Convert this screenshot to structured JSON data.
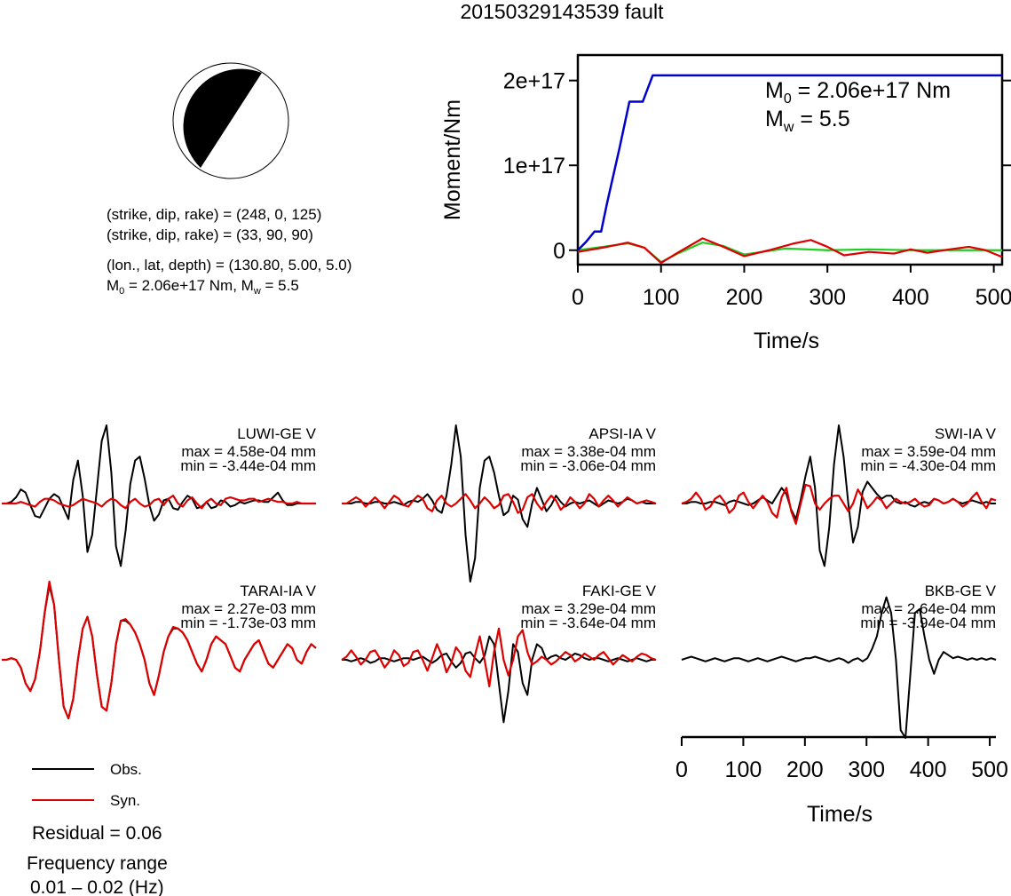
{
  "title": "20150329143539 fault",
  "mechanism": {
    "plane1": "(strike, dip, rake) = (248, 0, 125)",
    "plane2": "(strike, dip, rake) = (33, 90, 90)",
    "location": "(lon., lat, depth) = (130.80, 5.00, 5.0)",
    "m0_prefix": "M",
    "m0_sub": "0",
    "m0_value": " = 2.06e+17 Nm, M",
    "mw_sub": "w",
    "mw_value": " = 5.5"
  },
  "moment_plot": {
    "ylabel": "Moment/Nm",
    "xlabel": "Time/s",
    "m0_prefix": "M",
    "m0_sub": "0",
    "m0_value": " = 2.06e+17 Nm",
    "mw_prefix": "M",
    "mw_sub": "w",
    "mw_value": " = 5.5",
    "xticks": [
      "0",
      "100",
      "200",
      "300",
      "400",
      "500"
    ],
    "yticks": [
      "0",
      "1e+17",
      "2e+17"
    ]
  },
  "chart_data": [
    {
      "type": "line",
      "panel": "moment-function",
      "xlabel": "Time/s",
      "ylabel": "Moment/Nm",
      "xlim": [
        0,
        510
      ],
      "ylim": [
        -1.7e+16,
        2.3e+17
      ],
      "series": [
        {
          "color": "#0000cc",
          "x": [
            0,
            10,
            20,
            28,
            35,
            50,
            62,
            70,
            78,
            90,
            100,
            200,
            300,
            400,
            510
          ],
          "y": [
            0,
            1e+16,
            2.2e+16,
            2.2e+16,
            5.5e+16,
            1.2e+17,
            1.75e+17,
            1.75e+17,
            1.75e+17,
            2.06e+17,
            2.06e+17,
            2.06e+17,
            2.06e+17,
            2.06e+17,
            2.06e+17
          ]
        },
        {
          "color": "#dd0000",
          "x": [
            0,
            30,
            60,
            80,
            100,
            120,
            150,
            175,
            200,
            230,
            260,
            280,
            300,
            320,
            350,
            380,
            400,
            420,
            440,
            470,
            490,
            510
          ],
          "y": [
            -2000000000000000.0,
            3000000000000000.0,
            9000000000000000.0,
            3000000000000000.0,
            -1.5e+16,
            -3000000000000000.0,
            1.4e+16,
            4000000000000000.0,
            -7000000000000000.0,
            0.0,
            8000000000000000.0,
            1.2e+16,
            4000000000000000.0,
            -6000000000000000.0,
            -2000000000000000.0,
            -4000000000000000.0,
            1000000000000000.0,
            -3000000000000000.0,
            0.0,
            4000000000000000.0,
            0.0,
            -8000000000000000.0
          ]
        },
        {
          "color": "#22cc22",
          "x": [
            0,
            30,
            60,
            80,
            100,
            120,
            150,
            175,
            200,
            250,
            300,
            350,
            400,
            450,
            510
          ],
          "y": [
            0,
            4000000000000000.0,
            8000000000000000.0,
            3000000000000000.0,
            -1.4e+16,
            -4000000000000000.0,
            9000000000000000.0,
            5000000000000000.0,
            -5000000000000000.0,
            2000000000000000.0,
            0.0,
            1000000000000000.0,
            0.0,
            0.0,
            0.0
          ]
        }
      ]
    },
    {
      "type": "line",
      "panel": "waveforms",
      "xlabel": "Time/s",
      "xlim": [
        0,
        510
      ],
      "stations": [
        {
          "name": "LUWI-GE V",
          "max": "max = 4.58e-04 mm",
          "min": "min = -3.44e-04 mm",
          "obs": [
            0,
            0,
            0.02,
            0.08,
            0.18,
            0.14,
            -0.02,
            -0.16,
            -0.18,
            -0.06,
            0.06,
            0.12,
            0.08,
            -0.06,
            -0.2,
            0.3,
            0.55,
            0.1,
            -0.62,
            -0.4,
            0.2,
            0.8,
            1.0,
            0.4,
            -0.55,
            -0.8,
            -0.35,
            0.25,
            0.55,
            0.6,
            0.32,
            -0.02,
            -0.22,
            -0.14,
            0.04,
            0.06,
            -0.06,
            -0.08,
            0.02,
            0.1,
            0.06,
            -0.06,
            -0.04,
            0.02,
            -0.06,
            -0.04,
            0.04,
            0.02,
            -0.04,
            -0.02,
            0.02,
            0,
            0.02,
            0.04,
            0.04,
            0.02,
            0.02,
            0.08,
            0.14,
            0.04,
            -0.02,
            -0.02,
            0,
            0,
            0,
            0,
            0
          ],
          "syn": [
            0,
            0,
            0,
            0,
            0.02,
            0,
            -0.02,
            -0.04,
            0.02,
            0.06,
            0.06,
            0.04,
            0.0,
            -0.02,
            -0.04,
            -0.02,
            0.02,
            0.06,
            0.04,
            0.02,
            0.0,
            -0.04,
            0.02,
            0.06,
            0.04,
            -0.02,
            -0.06,
            0.02,
            0.06,
            0.0,
            -0.04,
            -0.02,
            0.04,
            0.06,
            -0.02,
            0.06,
            0.1,
            0.0,
            -0.04,
            0.04,
            0.08,
            0.0,
            -0.06,
            0.02,
            0.06,
            0.0,
            -0.02,
            0.06,
            0.08,
            0.06,
            0.04,
            0.04,
            0.06,
            0.06,
            0.02,
            0.04,
            0.06,
            0.04,
            0.02,
            0.02,
            0.0,
            0.0,
            0.02,
            0.0,
            0.0,
            0.0,
            0.0
          ]
        },
        {
          "name": "APSI-IA V",
          "max": "max = 3.38e-04 mm",
          "min": "min = -3.06e-04 mm",
          "obs": [
            0,
            0,
            0,
            0.02,
            0.02,
            0,
            0,
            0.02,
            0.02,
            0,
            0,
            0.02,
            0,
            -0.02,
            0.02,
            0.04,
            0.02,
            0.06,
            0.12,
            0.04,
            -0.08,
            -0.12,
            0.1,
            0.5,
            1.0,
            0.6,
            -0.4,
            -1.0,
            -0.7,
            0.2,
            0.55,
            0.6,
            0.4,
            0.1,
            -0.15,
            -0.1,
            0.1,
            0.05,
            -0.2,
            -0.3,
            0.0,
            0.2,
            0.05,
            -0.1,
            -0.02,
            0.1,
            0.02,
            -0.04,
            0.0,
            0.02,
            0.0,
            0.02,
            0.04,
            0.0,
            -0.04,
            0.0,
            0.04,
            0.02,
            0.0,
            0.02,
            0.06,
            0.04,
            0.0,
            0.02,
            0,
            0,
            0
          ],
          "syn": [
            0,
            0,
            0.04,
            0.08,
            0.04,
            -0.04,
            0.02,
            0.08,
            0.02,
            -0.06,
            0.02,
            0.1,
            0.06,
            -0.02,
            -0.04,
            0.04,
            0.1,
            0.06,
            -0.06,
            -0.1,
            0.04,
            0.1,
            0.0,
            -0.04,
            0.0,
            0.06,
            0.12,
            0.04,
            -0.06,
            0.0,
            0.08,
            0.02,
            -0.06,
            -0.02,
            0.1,
            0.12,
            0.02,
            -0.12,
            -0.08,
            0.08,
            0.12,
            0.0,
            -0.08,
            0.02,
            0.1,
            0.04,
            -0.08,
            -0.02,
            0.08,
            0.02,
            -0.06,
            0.0,
            0.12,
            0.06,
            -0.04,
            0.04,
            0.1,
            0.04,
            -0.04,
            0.02,
            0.08,
            0.04,
            0.0,
            0.02,
            0.04,
            0.02,
            0
          ]
        },
        {
          "name": "SWI-IA V",
          "max": "max = 3.59e-04 mm",
          "min": "min = -4.30e-04 mm",
          "obs": [
            0,
            0,
            0.02,
            0.02,
            0,
            0,
            0.02,
            0.02,
            0,
            -0.02,
            0.02,
            0.04,
            0.02,
            0,
            -0.02,
            0,
            0.04,
            0.08,
            0.04,
            0.0,
            0.1,
            0.2,
            0.12,
            -0.08,
            -0.2,
            0.05,
            0.35,
            0.6,
            0.2,
            -0.6,
            -0.8,
            -0.3,
            0.5,
            1.0,
            0.6,
            0.0,
            -0.5,
            -0.3,
            0.15,
            0.28,
            0.2,
            0.12,
            0.06,
            0.1,
            0.1,
            0.02,
            0.0,
            0.02,
            -0.02,
            -0.04,
            0.0,
            0.02,
            0.0,
            0.06,
            0.04,
            0.0,
            0.02,
            0.06,
            0.02,
            0.0,
            0.02,
            0.04,
            0.02,
            0.0,
            0.02,
            0,
            0
          ],
          "syn": [
            0,
            0.02,
            0.06,
            0.14,
            0.06,
            -0.08,
            -0.04,
            0.06,
            0.1,
            0.02,
            -0.12,
            -0.06,
            0.1,
            0.14,
            0.02,
            -0.06,
            0.02,
            0.1,
            0.02,
            -0.12,
            -0.18,
            0.08,
            0.2,
            -0.1,
            -0.26,
            0.0,
            0.24,
            0.22,
            0.0,
            -0.08,
            0.0,
            0.06,
            0.1,
            0.1,
            0.0,
            -0.1,
            0.0,
            0.18,
            0.08,
            -0.06,
            0.0,
            0.08,
            0.04,
            -0.06,
            0.0,
            0.06,
            0.02,
            0.0,
            0.02,
            0.06,
            0.0,
            -0.04,
            -0.02,
            0.06,
            0.04,
            0.0,
            0.02,
            0.06,
            0.02,
            -0.04,
            0.0,
            0.08,
            0.14,
            0.02,
            -0.06,
            0.06,
            0.04
          ]
        },
        {
          "name": "TARAI-IA V",
          "max": "max = 2.27e-03 mm",
          "min": "min = -1.73e-03 mm",
          "obs": [
            0,
            0,
            0.02,
            0,
            -0.1,
            -0.3,
            -0.4,
            -0.25,
            0.1,
            0.6,
            0.95,
            0.7,
            0.0,
            -0.6,
            -0.75,
            -0.5,
            0.0,
            0.4,
            0.55,
            0.3,
            -0.2,
            -0.6,
            -0.65,
            -0.3,
            0.2,
            0.5,
            0.5,
            0.45,
            0.35,
            0.2,
            0.0,
            -0.3,
            -0.45,
            -0.2,
            0.1,
            0.3,
            0.4,
            0.4,
            0.35,
            0.25,
            0.1,
            -0.05,
            -0.15,
            0.0,
            0.2,
            0.3,
            0.25,
            0.2,
            0.05,
            -0.1,
            -0.15,
            0.0,
            0.1,
            0.2,
            0.25,
            0.1,
            -0.05,
            -0.1,
            0.0,
            0.1,
            0.2,
            0.15,
            0.0,
            -0.05,
            0.1,
            0.2,
            0.15
          ],
          "syn": [
            0,
            0,
            0.02,
            0,
            -0.1,
            -0.3,
            -0.4,
            -0.25,
            0.1,
            0.6,
            1.0,
            0.7,
            0.0,
            -0.6,
            -0.75,
            -0.5,
            0.0,
            0.4,
            0.55,
            0.3,
            -0.2,
            -0.6,
            -0.65,
            -0.3,
            0.2,
            0.5,
            0.52,
            0.45,
            0.35,
            0.2,
            0.0,
            -0.3,
            -0.45,
            -0.2,
            0.1,
            0.3,
            0.42,
            0.4,
            0.35,
            0.25,
            0.1,
            -0.05,
            -0.15,
            0.0,
            0.2,
            0.3,
            0.25,
            0.2,
            0.05,
            -0.1,
            -0.15,
            0.0,
            0.1,
            0.2,
            0.25,
            0.1,
            -0.05,
            -0.1,
            0.0,
            0.1,
            0.2,
            0.15,
            0.0,
            -0.05,
            0.1,
            0.2,
            0.15
          ]
        },
        {
          "name": "FAKI-GE V",
          "max": "max = 3.29e-04 mm",
          "min": "min = -3.64e-04 mm",
          "obs": [
            0,
            0,
            -0.02,
            0.0,
            0.02,
            0.0,
            -0.04,
            -0.02,
            0.02,
            0.02,
            0.0,
            -0.02,
            0.0,
            0.02,
            0.02,
            0.0,
            0.02,
            0.04,
            0.0,
            -0.04,
            0.0,
            0.06,
            0.08,
            -0.02,
            -0.1,
            -0.04,
            0.08,
            0.1,
            0.02,
            -0.04,
            0.05,
            0.3,
            0.2,
            -0.3,
            -0.8,
            -0.4,
            0.2,
            0.1,
            -0.3,
            -0.45,
            0.0,
            0.2,
            0.15,
            0.0,
            0.04,
            0.06,
            0.02,
            0.0,
            0.04,
            0.08,
            0.06,
            0.02,
            0.0,
            0.02,
            0.02,
            0.0,
            -0.02,
            0.0,
            0.02,
            0.0,
            -0.02,
            0.0,
            0.02,
            0.0,
            -0.02,
            0,
            0
          ],
          "syn": [
            0,
            0.04,
            0.12,
            0.04,
            -0.06,
            0.0,
            0.1,
            0.12,
            0.02,
            -0.1,
            -0.02,
            0.12,
            0.06,
            -0.08,
            -0.04,
            0.1,
            0.12,
            0.0,
            -0.14,
            0.02,
            0.2,
            0.06,
            -0.16,
            -0.04,
            0.16,
            0.08,
            -0.14,
            -0.22,
            0.06,
            0.3,
            0.0,
            -0.34,
            0.1,
            0.4,
            0.0,
            -0.2,
            0.0,
            0.3,
            0.38,
            0.1,
            -0.06,
            -0.02,
            0.04,
            0.0,
            -0.06,
            -0.02,
            0.04,
            0.1,
            0.06,
            -0.02,
            0.02,
            0.08,
            0.04,
            0.0,
            0.06,
            0.1,
            0.02,
            -0.06,
            0.0,
            0.06,
            0.02,
            -0.02,
            0.04,
            0.08,
            0.06,
            0.02,
            0
          ]
        },
        {
          "name": "BKB-GE V",
          "max": "max = 2.64e-04 mm",
          "min": "min = -3.94e-04 mm",
          "obs": [
            0,
            0.02,
            0.04,
            0.02,
            0.0,
            -0.02,
            0.0,
            0.02,
            0.0,
            -0.02,
            0.0,
            0.02,
            0.02,
            0.0,
            -0.02,
            0.0,
            0.02,
            0.0,
            -0.02,
            0.0,
            0.02,
            0.04,
            0.02,
            0.0,
            -0.02,
            0.0,
            0.02,
            0.02,
            0.04,
            0.02,
            0.0,
            -0.02,
            0.0,
            0.02,
            0.0,
            -0.04,
            0.0,
            0.02,
            -0.02,
            0.02,
            0.14,
            0.3,
            0.6,
            0.8,
            0.6,
            0.0,
            -0.9,
            -1.0,
            -0.2,
            0.6,
            0.65,
            0.3,
            0.0,
            -0.18,
            0.0,
            0.1,
            0.06,
            0.02,
            0.04,
            0.02,
            0.0,
            0.02,
            0.0,
            0.02,
            0.0,
            0.02,
            0
          ]
        },
        {
          "name": "",
          "max": "",
          "min": "",
          "obs": [],
          "syn": []
        }
      ]
    }
  ],
  "legend": {
    "obs_label": "Obs.",
    "syn_label": "Syn.",
    "obs_color": "#000000",
    "syn_color": "#dd0000"
  },
  "residual": "Residual = 0.06",
  "frequency_title": "Frequency range",
  "frequency_value": "0.01 – 0.02 (Hz)",
  "waveform_axis": {
    "xlabel": "Time/s",
    "xticks": [
      "0",
      "100",
      "200",
      "300",
      "400",
      "500"
    ]
  }
}
